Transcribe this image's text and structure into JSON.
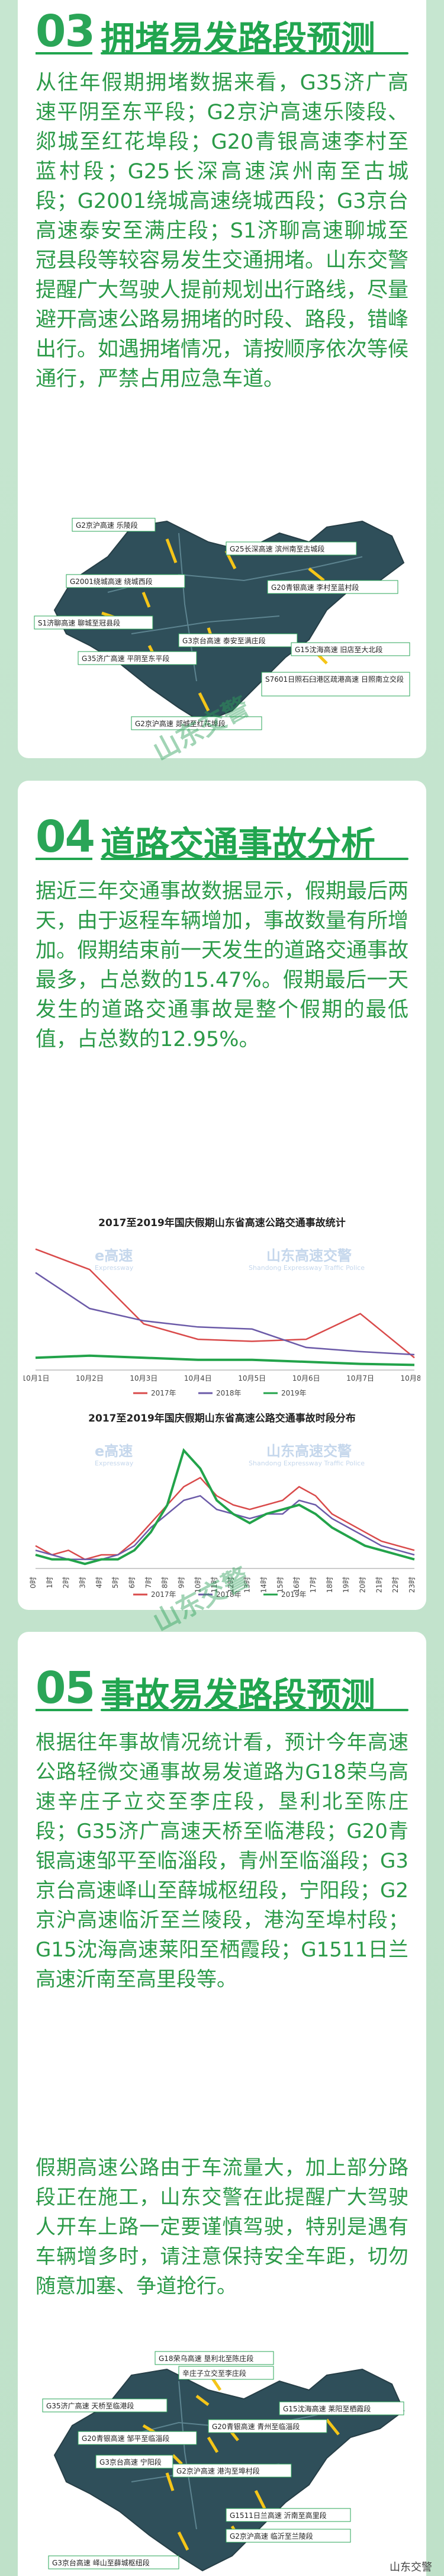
{
  "section3": {
    "number": "03",
    "title": "拥堵易发路段预测",
    "paragraph": "从往年假期拥堵数据来看，G35济广高速平阴至东平段；G2京沪高速乐陵段、郯城至红花埠段；G20青银高速李村至蓝村段；G25长深高速滨州南至古城段；G2001绕城高速绕城西段；G3京台高速泰安至满庄段；S1济聊高速聊城至冠县段等较容易发生交通拥堵。山东交警提醒广大驾驶人提前规划出行路线，尽量避开高速公路易拥堵的时段、路段，错峰出行。如遇拥堵情况，请按顺序依次等候通行，严禁占用应急车道。",
    "map_labels": [
      "G2京沪高速 乐陵段",
      "G25长深高速 滨州南至古城段",
      "G2001绕城高速 绕城西段",
      "G20青银高速 李村至蓝村段",
      "S1济聊高速 聊城至冠县段",
      "G3京台高速 泰安至满庄段",
      "G35济广高速 平阴至东平段",
      "G2京沪高速 郯城至红花埠段",
      "G15沈海高速 旧店至大北段",
      "S7601日照石臼港区疏港高速 日照南立交段"
    ]
  },
  "section4": {
    "number": "04",
    "title": "道路交通事故分析",
    "paragraph": "据近三年交通事故数据显示，假期最后两天，由于返程车辆增加，事故数量有所增加。假期结束前一天发生的道路交通事故最多，占总数的15.47%。假期最后一天发生的道路交通事故是整个假期的最低值，占总数的12.95%。"
  },
  "chart_data": [
    {
      "type": "line",
      "title": "2017至2019年国庆假期山东省高速公路交通事故统计",
      "categories": [
        "10月1日",
        "10月2日",
        "10月3日",
        "10月4日",
        "10月5日",
        "10月6日",
        "10月7日",
        "10月8日"
      ],
      "series": [
        {
          "name": "2017年",
          "color": "#d94a4a",
          "values": [
            118,
            98,
            45,
            30,
            28,
            30,
            55,
            12
          ]
        },
        {
          "name": "2018年",
          "color": "#6b5aa8",
          "values": [
            95,
            60,
            48,
            42,
            40,
            22,
            18,
            15
          ]
        },
        {
          "name": "2019年",
          "color": "#22a34a",
          "values": [
            12,
            14,
            12,
            10,
            10,
            8,
            6,
            5
          ]
        }
      ],
      "ylim": [
        0,
        130
      ]
    },
    {
      "type": "line",
      "title": "2017至2019年国庆假期山东省高速公路交通事故时段分布",
      "categories": [
        "0时",
        "1时",
        "2时",
        "3时",
        "4时",
        "5时",
        "6时",
        "7时",
        "8时",
        "9时",
        "10时",
        "11时",
        "12时",
        "13时",
        "14时",
        "15时",
        "16时",
        "17时",
        "18时",
        "19时",
        "20时",
        "21时",
        "22时",
        "23时"
      ],
      "series": [
        {
          "name": "2017年",
          "color": "#d94a4a",
          "values": [
            5,
            3,
            4,
            2,
            3,
            3,
            6,
            10,
            14,
            18,
            20,
            16,
            14,
            13,
            14,
            15,
            18,
            16,
            12,
            10,
            8,
            6,
            5,
            4
          ]
        },
        {
          "name": "2018年",
          "color": "#6b5aa8",
          "values": [
            4,
            3,
            2,
            2,
            2,
            3,
            5,
            9,
            12,
            15,
            16,
            13,
            12,
            11,
            12,
            12,
            15,
            14,
            11,
            9,
            7,
            5,
            4,
            3
          ]
        },
        {
          "name": "2019年",
          "color": "#22a34a",
          "values": [
            3,
            2,
            2,
            1,
            2,
            2,
            4,
            8,
            14,
            26,
            22,
            15,
            12,
            10,
            12,
            13,
            14,
            12,
            9,
            7,
            5,
            4,
            3,
            2
          ]
        }
      ],
      "ylim": [
        0,
        30
      ]
    }
  ],
  "chart_watermarks": {
    "expressway_cn": "e高速",
    "expressway_en": "Expressway",
    "police_cn": "山东高速交警",
    "police_en": "Shandong Expressway Traffic Police"
  },
  "section5": {
    "number": "05",
    "title": "事故易发路段预测",
    "paragraph1": "根据往年事故情况统计看，预计今年高速公路轻微交通事故易发道路为G18荣乌高速辛庄子立交至李庄段，垦利北至陈庄段；G35济广高速天桥至临港段；G20青银高速邹平至临淄段，青州至临淄段；G3京台高速峄山至薛城枢纽段，宁阳段；G2京沪高速临沂至兰陵段，港沟至埠村段；G15沈海高速莱阳至栖霞段；G1511日兰高速沂南至高里段等。",
    "paragraph2": "假期高速公路由于车流量大，加上部分路段正在施工，山东交警在此提醒广大驾驶人开车上路一定要谨慎驾驶，特别是遇有车辆增多时，请注意保持安全车距，切勿随意加塞、争道抢行。",
    "map_labels": [
      "G18荣乌高速 垦利北至陈庄段",
      "辛庄子立交至李庄段",
      "G35济广高速 天桥至临港段",
      "G20青银高速 青州至临淄段",
      "G20青银高速 邹平至临淄段",
      "G15沈海高速 莱阳至栖霞段",
      "G3京台高速 宁阳段",
      "G2京沪高速 港沟至埠村段",
      "G1511日兰高速 沂南至高里段",
      "G2京沪高速 临沂至兰陵段",
      "G3京台高速 峄山至薛城枢纽段"
    ]
  },
  "watermark_text": "山东交警",
  "footer_credit": "山东交警"
}
